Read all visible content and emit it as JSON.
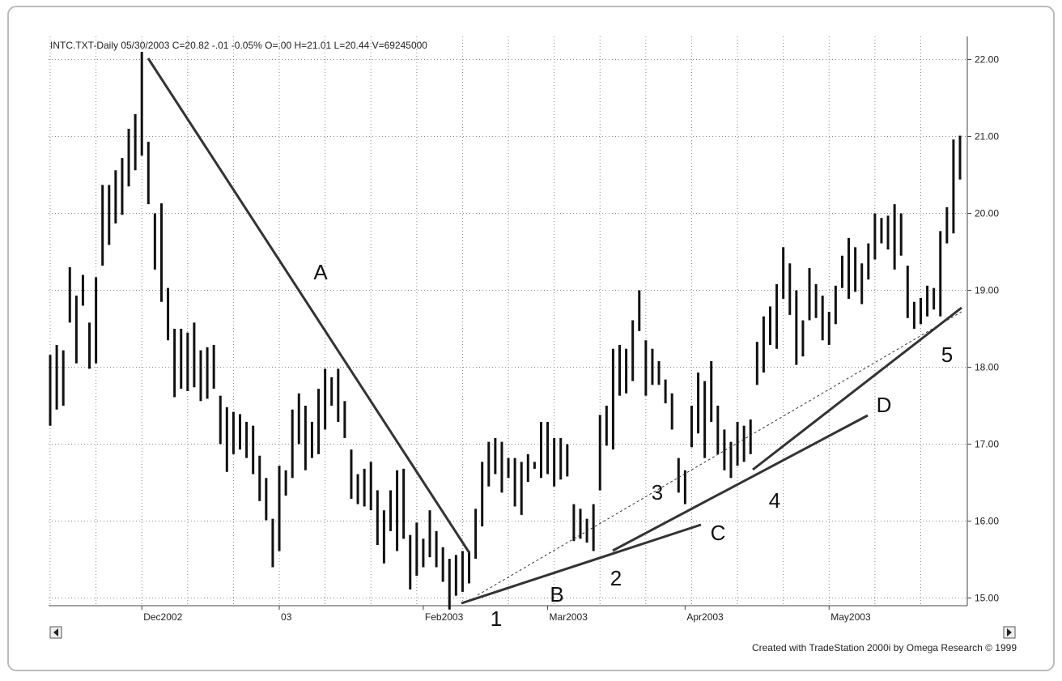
{
  "chart_data": {
    "type": "ohlc",
    "header": "INTC.TXT-Daily  05/30/2003  C=20.82  -.01  -0.05%  O=.00  H=21.01  L=20.44  V=69245000",
    "footer": "Created with TradeStation 2000i by Omega Research © 1999",
    "categories": [
      null,
      null,
      null,
      null,
      null,
      null,
      null,
      null,
      null,
      null,
      null,
      null,
      null,
      null,
      "Dec2002",
      null,
      null,
      null,
      null,
      null,
      null,
      null,
      null,
      null,
      null,
      null,
      null,
      null,
      null,
      null,
      null,
      null,
      null,
      null,
      null,
      "03",
      null,
      null,
      null,
      null,
      null,
      null,
      null,
      null,
      null,
      null,
      null,
      null,
      null,
      null,
      null,
      null,
      null,
      null,
      null,
      null,
      null,
      "Feb2003",
      null,
      null,
      null,
      null,
      null,
      null,
      null,
      null,
      null,
      null,
      null,
      null,
      null,
      null,
      null,
      null,
      null,
      null,
      "Mar2003",
      null,
      null,
      null,
      null,
      null,
      null,
      null,
      null,
      null,
      null,
      null,
      null,
      null,
      null,
      null,
      null,
      null,
      null,
      null,
      null,
      "Apr2003",
      null,
      null,
      null,
      null,
      null,
      null,
      null,
      null,
      null,
      null,
      null,
      null,
      null,
      null,
      null,
      null,
      null,
      null,
      null,
      null,
      null,
      "May2003",
      null,
      null,
      null,
      null,
      null,
      null,
      null,
      null,
      null,
      null,
      null,
      null,
      null,
      null,
      null,
      null,
      null,
      null,
      null,
      null
    ],
    "high": [
      18.16,
      18.29,
      18.22,
      19.3,
      18.93,
      19.2,
      18.58,
      19.17,
      20.37,
      20.37,
      20.56,
      20.72,
      21.1,
      21.29,
      22.1,
      20.93,
      20.0,
      20.13,
      19.03,
      18.5,
      18.5,
      18.45,
      18.58,
      18.22,
      18.26,
      18.29,
      17.63,
      17.48,
      17.42,
      17.39,
      17.29,
      17.24,
      16.85,
      16.56,
      16.03,
      16.72,
      16.66,
      17.45,
      17.66,
      17.5,
      17.29,
      17.72,
      17.98,
      17.87,
      17.98,
      17.56,
      16.93,
      16.61,
      16.68,
      16.77,
      16.4,
      16.14,
      16.4,
      16.66,
      16.68,
      15.82,
      15.98,
      15.77,
      16.14,
      15.87,
      15.66,
      15.51,
      15.56,
      15.61,
      15.61,
      16.16,
      16.77,
      17.03,
      17.08,
      17.03,
      16.82,
      16.82,
      16.77,
      16.87,
      16.77,
      17.29,
      17.29,
      17.08,
      17.08,
      17.0,
      16.22,
      16.16,
      16.03,
      16.22,
      17.38,
      17.5,
      18.24,
      18.29,
      18.24,
      18.61,
      19.0,
      18.35,
      18.24,
      18.08,
      17.84,
      17.66,
      16.82,
      16.66,
      17.5,
      17.93,
      17.82,
      18.08,
      17.5,
      17.19,
      17.03,
      17.29,
      17.24,
      17.32,
      18.33,
      18.66,
      18.79,
      19.08,
      19.56,
      19.35,
      19.0,
      18.61,
      19.29,
      19.08,
      18.93,
      18.72,
      19.06,
      19.45,
      19.68,
      19.56,
      19.35,
      19.61,
      20.0,
      19.94,
      19.97,
      20.12,
      20.0,
      19.32,
      18.85,
      18.9,
      19.06,
      19.03,
      19.77,
      20.08,
      20.96,
      21.01
    ],
    "low": [
      17.24,
      17.45,
      17.5,
      18.58,
      18.05,
      18.8,
      17.98,
      18.05,
      19.32,
      19.59,
      19.87,
      19.98,
      20.35,
      20.56,
      20.75,
      20.12,
      19.27,
      18.85,
      18.35,
      17.61,
      17.72,
      17.69,
      17.74,
      17.56,
      17.59,
      17.72,
      17.0,
      16.64,
      16.87,
      16.93,
      16.82,
      16.61,
      16.26,
      16.01,
      15.4,
      15.61,
      16.33,
      16.56,
      17.0,
      16.66,
      16.82,
      16.87,
      17.19,
      17.5,
      17.29,
      17.08,
      16.29,
      16.22,
      16.19,
      16.14,
      15.69,
      15.45,
      15.87,
      15.61,
      15.77,
      15.11,
      15.29,
      15.4,
      15.53,
      15.4,
      15.21,
      14.85,
      15.03,
      15.08,
      15.19,
      15.51,
      15.93,
      16.45,
      16.61,
      16.37,
      16.56,
      16.19,
      16.08,
      16.51,
      16.68,
      16.56,
      16.61,
      16.45,
      16.54,
      16.58,
      15.74,
      15.77,
      15.72,
      15.61,
      16.4,
      16.98,
      16.93,
      17.63,
      17.66,
      17.82,
      18.47,
      17.63,
      17.77,
      17.77,
      17.53,
      17.19,
      16.37,
      16.22,
      16.96,
      17.14,
      16.82,
      17.29,
      16.87,
      16.66,
      16.56,
      16.72,
      16.77,
      16.87,
      17.77,
      17.93,
      18.29,
      18.24,
      18.89,
      18.68,
      18.03,
      18.14,
      18.61,
      18.64,
      18.35,
      18.29,
      18.56,
      19.03,
      18.89,
      18.98,
      18.82,
      19.14,
      19.4,
      19.61,
      19.53,
      19.27,
      19.45,
      18.64,
      18.5,
      18.56,
      18.66,
      18.75,
      18.66,
      19.61,
      19.74,
      20.44
    ],
    "color": "#111111",
    "ylim": [
      14.9,
      22.3
    ],
    "yticks": [
      {
        "value": 15,
        "label": "15.00"
      },
      {
        "value": 16,
        "label": "16.00"
      },
      {
        "value": 17,
        "label": "17.00"
      },
      {
        "value": 18,
        "label": "18.00"
      },
      {
        "value": 19,
        "label": "19.00"
      },
      {
        "value": 20,
        "label": "20.00"
      },
      {
        "value": 21,
        "label": "21.00"
      },
      {
        "value": 22,
        "label": "22.00"
      }
    ],
    "grid": true,
    "annotations": [
      "A",
      "B",
      "C",
      "D",
      "1",
      "2",
      "3",
      "4",
      "5"
    ]
  }
}
